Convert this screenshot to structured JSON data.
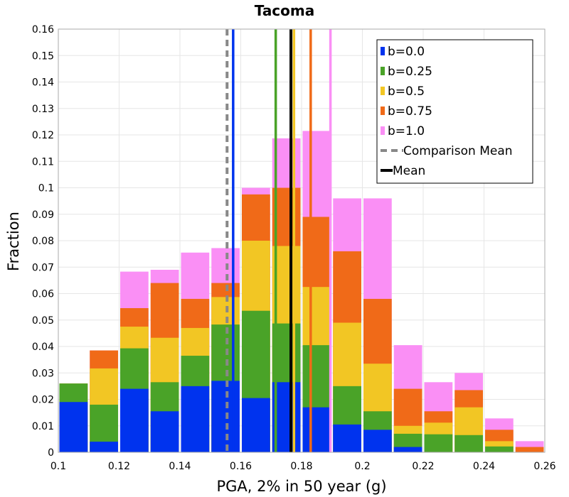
{
  "chart_data": {
    "type": "bar",
    "stacked": true,
    "title": "Tacoma",
    "xlabel": "PGA, 2% in 50 year (g)",
    "ylabel": "Fraction",
    "xlim": [
      0.1,
      0.26
    ],
    "ylim": [
      0,
      0.16
    ],
    "bin_width": 0.01,
    "x_ticks": [
      "0.1",
      "0.12",
      "0.14",
      "0.16",
      "0.18",
      "0.2",
      "0.22",
      "0.24",
      "0.26"
    ],
    "x_tick_values": [
      0.1,
      0.12,
      0.14,
      0.16,
      0.18,
      0.2,
      0.22,
      0.24,
      0.26
    ],
    "y_ticks": [
      "0",
      "0.01",
      "0.02",
      "0.03",
      "0.04",
      "0.05",
      "0.06",
      "0.07",
      "0.08",
      "0.09",
      "0.1",
      "0.11",
      "0.12",
      "0.13",
      "0.14",
      "0.15",
      "0.16"
    ],
    "y_tick_values": [
      0,
      0.01,
      0.02,
      0.03,
      0.04,
      0.05,
      0.06,
      0.07,
      0.08,
      0.09,
      0.1,
      0.11,
      0.12,
      0.13,
      0.14,
      0.15,
      0.16
    ],
    "bin_starts": [
      0.1,
      0.11,
      0.12,
      0.13,
      0.14,
      0.15,
      0.16,
      0.17,
      0.18,
      0.19,
      0.2,
      0.21,
      0.22,
      0.23,
      0.24,
      0.25
    ],
    "series": [
      {
        "name": "b=0.0",
        "color": "#0033ee",
        "cumulative": [
          0.019,
          0.004,
          0.024,
          0.0155,
          0.025,
          0.027,
          0.0205,
          0.0265,
          0.017,
          0.0105,
          0.0085,
          0.002,
          0.0,
          0.0,
          0.0,
          0.0
        ]
      },
      {
        "name": "b=0.25",
        "color": "#4aa328",
        "cumulative": [
          0.026,
          0.018,
          0.0393,
          0.0265,
          0.0365,
          0.0483,
          0.0535,
          0.0487,
          0.0405,
          0.025,
          0.0155,
          0.007,
          0.0068,
          0.0065,
          0.0022,
          0.0
        ]
      },
      {
        "name": "b=0.5",
        "color": "#f2c624",
        "cumulative": [
          0.026,
          0.0317,
          0.0475,
          0.0433,
          0.047,
          0.0587,
          0.08,
          0.078,
          0.0625,
          0.049,
          0.0335,
          0.01,
          0.0112,
          0.017,
          0.0042,
          0.0
        ]
      },
      {
        "name": "b=0.75",
        "color": "#f06a18",
        "cumulative": [
          0.026,
          0.0385,
          0.0545,
          0.064,
          0.058,
          0.064,
          0.0975,
          0.1,
          0.089,
          0.076,
          0.058,
          0.024,
          0.0155,
          0.0235,
          0.0085,
          0.002
        ]
      },
      {
        "name": "b=1.0",
        "color": "#fa8ff5",
        "cumulative": [
          0.026,
          0.0385,
          0.0683,
          0.069,
          0.0755,
          0.0772,
          0.1,
          0.1187,
          0.1215,
          0.096,
          0.096,
          0.0405,
          0.0265,
          0.03,
          0.0128,
          0.0042
        ]
      }
    ],
    "vertical_lines": [
      {
        "name": "b=0.0 mean",
        "x": 0.1575,
        "color": "#0033ee",
        "style": "solid",
        "in_legend": false
      },
      {
        "name": "b=0.25 mean",
        "x": 0.1715,
        "color": "#4aa328",
        "style": "solid",
        "in_legend": false
      },
      {
        "name": "b=0.5 mean",
        "x": 0.1775,
        "color": "#f2c624",
        "style": "solid",
        "in_legend": false
      },
      {
        "name": "b=0.75 mean",
        "x": 0.183,
        "color": "#f06a18",
        "style": "solid",
        "in_legend": false
      },
      {
        "name": "b=1.0 mean",
        "x": 0.1895,
        "color": "#fa8ff5",
        "style": "solid",
        "in_legend": false
      },
      {
        "name": "Comparison Mean",
        "x": 0.1555,
        "color": "#888888",
        "style": "dashed",
        "in_legend": true
      },
      {
        "name": "Mean",
        "x": 0.1765,
        "color": "#000000",
        "style": "solid",
        "in_legend": true
      }
    ],
    "legend": {
      "placement": "top-right",
      "entries": [
        {
          "label": "b=0.0",
          "kind": "patch",
          "color": "#0033ee"
        },
        {
          "label": "b=0.25",
          "kind": "patch",
          "color": "#4aa328"
        },
        {
          "label": "b=0.5",
          "kind": "patch",
          "color": "#f2c624"
        },
        {
          "label": "b=0.75",
          "kind": "patch",
          "color": "#f06a18"
        },
        {
          "label": "b=1.0",
          "kind": "patch",
          "color": "#fa8ff5"
        },
        {
          "label": "Comparison Mean",
          "kind": "dashed-line",
          "color": "#888888"
        },
        {
          "label": "Mean",
          "kind": "line",
          "color": "#000000"
        }
      ]
    },
    "grid": true
  }
}
